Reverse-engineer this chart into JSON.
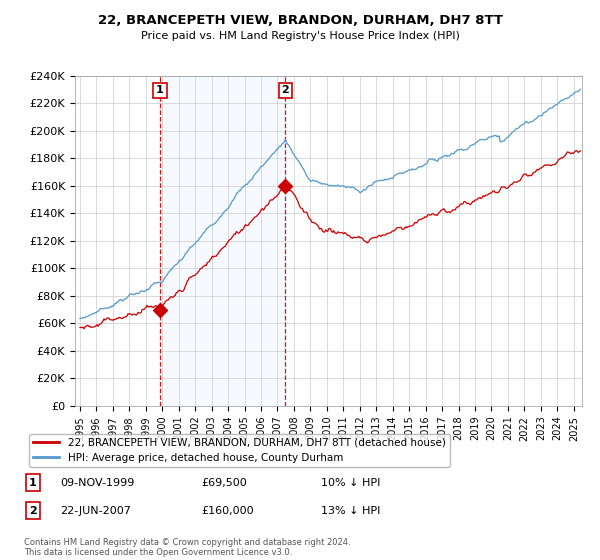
{
  "title": "22, BRANCEPETH VIEW, BRANDON, DURHAM, DH7 8TT",
  "subtitle": "Price paid vs. HM Land Registry's House Price Index (HPI)",
  "hpi_label": "HPI: Average price, detached house, County Durham",
  "property_label": "22, BRANCEPETH VIEW, BRANDON, DURHAM, DH7 8TT (detached house)",
  "footnote": "Contains HM Land Registry data © Crown copyright and database right 2024.\nThis data is licensed under the Open Government Licence v3.0.",
  "sale1_date": "09-NOV-1999",
  "sale1_price": "£69,500",
  "sale1_note": "10% ↓ HPI",
  "sale2_date": "22-JUN-2007",
  "sale2_price": "£160,000",
  "sale2_note": "13% ↓ HPI",
  "sale1_year": 1999.86,
  "sale1_value": 69500,
  "sale2_year": 2007.47,
  "sale2_value": 160000,
  "ylim": [
    0,
    240000
  ],
  "ytick_step": 20000,
  "xlim_start": 1995,
  "xlim_end": 2025.5,
  "property_color": "#cc0000",
  "hpi_color": "#5599cc",
  "shade_color": "#ddeeff",
  "background_color": "#ffffff",
  "grid_color": "#cccccc"
}
